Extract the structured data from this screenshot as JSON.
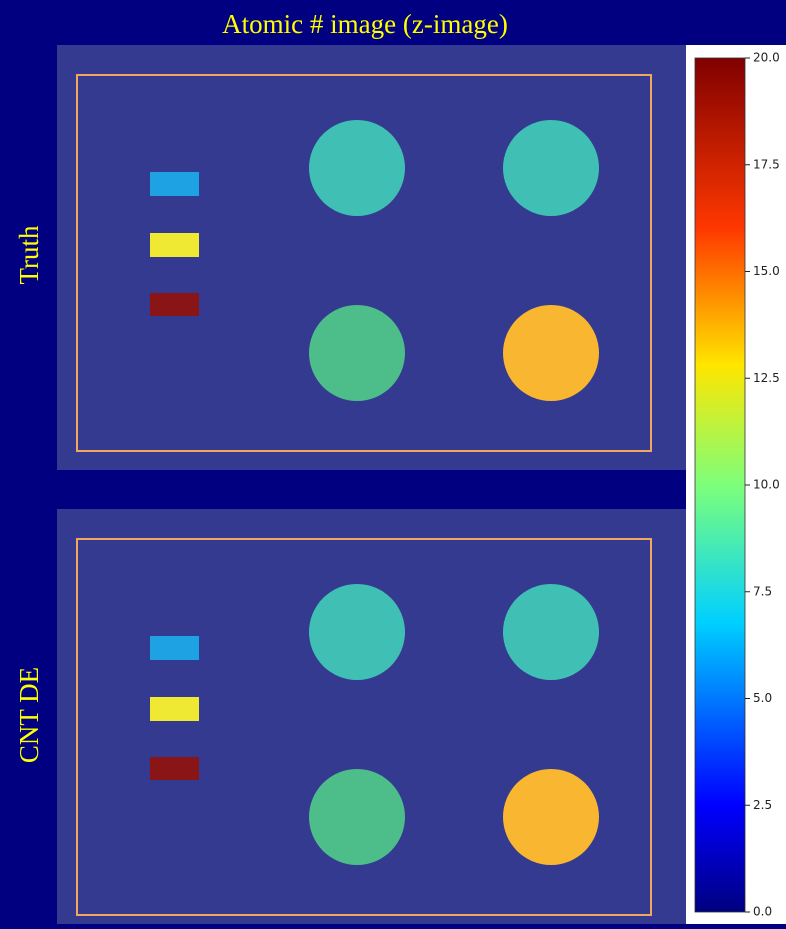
{
  "title": "Atomic # image (z-image)",
  "panels": [
    {
      "label": "Truth"
    },
    {
      "label": "CNT DE"
    }
  ],
  "colorbar": {
    "lim": [
      0,
      20
    ],
    "ticks": [
      {
        "value": 0,
        "label": "0.0"
      },
      2.5,
      {
        "value": 5,
        "label": "5.0"
      },
      7.5,
      {
        "value": 10,
        "label": "10.0"
      },
      12.5,
      {
        "value": 15,
        "label": "15.0"
      },
      17.5,
      {
        "value": 20,
        "label": "20.0"
      }
    ]
  }
}
